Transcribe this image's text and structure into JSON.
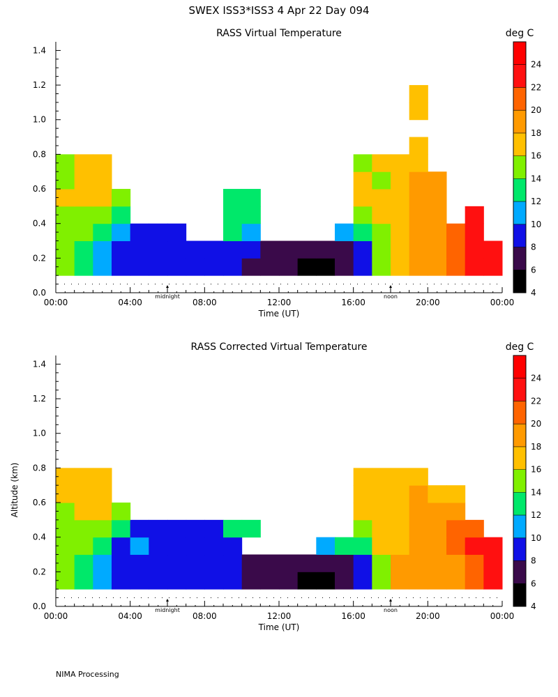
{
  "header": {
    "title": "SWEX ISS3*ISS3   4 Apr 22 Day 094"
  },
  "footer": {
    "text": "NIMA Processing"
  },
  "colorbar": {
    "unit": "deg C",
    "levels": [
      4,
      6,
      8,
      10,
      12,
      14,
      16,
      18,
      20,
      22,
      24,
      26
    ],
    "tick_labels": [
      "4",
      "6",
      "8",
      "10",
      "12",
      "14",
      "16",
      "18",
      "20",
      "22",
      "24"
    ],
    "colors": [
      "#000000",
      "#3a0a4a",
      "#1010e6",
      "#00aaff",
      "#00e86a",
      "#80f000",
      "#ffc000",
      "#ff9a00",
      "#ff6400",
      "#ff1010",
      "#ff0000"
    ]
  },
  "axes": {
    "xlabel": "Time (UT)",
    "ylabel": "Altitude (km)",
    "x_ticks": [
      "00:00",
      "04:00",
      "08:00",
      "12:00",
      "16:00",
      "20:00",
      "00:00"
    ],
    "y_ticks": [
      "0.0",
      "0.2",
      "0.4",
      "0.6",
      "0.8",
      "1.0",
      "1.2",
      "1.4"
    ],
    "marker_labels": {
      "midnight": "midnight",
      "noon": "noon"
    }
  },
  "chart_data": [
    {
      "type": "heatmap",
      "title": "RASS Virtual Temperature",
      "x_range_hours": [
        0,
        24
      ],
      "ylim_km": [
        0,
        1.45
      ],
      "x_hours": [
        0.5,
        1.5,
        2.5,
        3.5,
        4.5,
        5.5,
        6.5,
        7.5,
        8.5,
        9.5,
        10.5,
        11.5,
        12.5,
        13.5,
        14.5,
        15.5,
        16.5,
        17.5,
        18.5,
        19.5,
        20.5,
        21.5,
        22.5,
        23.5
      ],
      "y_km": [
        0.15,
        0.25,
        0.35,
        0.45,
        0.55,
        0.65,
        0.75,
        0.85,
        0.95,
        1.05,
        1.15
      ],
      "z_celsius": [
        [
          14,
          13,
          11,
          9,
          9,
          8.5,
          8.5,
          8.5,
          8,
          8,
          7.5,
          7,
          6.5,
          5.5,
          5,
          6,
          8,
          15,
          17,
          19,
          19,
          20,
          22,
          23
        ],
        [
          14,
          13,
          11,
          9,
          9,
          8.5,
          8.5,
          8.5,
          8,
          8,
          8,
          7.5,
          7,
          6.5,
          6.5,
          7,
          9,
          15,
          17,
          19,
          19,
          20,
          22,
          23
        ],
        [
          14,
          14,
          13,
          11,
          9,
          9,
          9,
          null,
          null,
          13,
          11,
          null,
          null,
          null,
          null,
          10,
          12,
          15,
          17,
          18,
          19,
          21,
          23,
          null
        ],
        [
          15,
          14,
          15,
          12,
          null,
          null,
          null,
          null,
          null,
          13,
          13,
          null,
          null,
          null,
          null,
          null,
          14,
          16,
          17,
          18,
          19,
          null,
          23,
          null
        ],
        [
          16,
          16,
          17,
          15,
          null,
          null,
          null,
          null,
          null,
          13,
          13,
          null,
          null,
          null,
          null,
          null,
          16,
          17,
          17,
          18,
          19,
          null,
          null,
          null
        ],
        [
          14,
          16,
          17,
          null,
          null,
          null,
          null,
          null,
          null,
          null,
          null,
          null,
          null,
          null,
          null,
          null,
          16,
          15,
          17,
          18,
          19,
          null,
          null,
          null
        ],
        [
          14,
          16,
          16,
          null,
          null,
          null,
          null,
          null,
          null,
          null,
          null,
          null,
          null,
          null,
          null,
          null,
          14,
          16,
          17,
          17,
          null,
          null,
          null,
          null
        ],
        [
          null,
          null,
          null,
          null,
          null,
          null,
          null,
          null,
          null,
          null,
          null,
          null,
          null,
          null,
          null,
          null,
          null,
          null,
          null,
          17,
          null,
          null,
          null,
          null
        ],
        [
          null,
          null,
          null,
          null,
          null,
          null,
          null,
          null,
          null,
          null,
          null,
          null,
          null,
          null,
          null,
          null,
          null,
          null,
          null,
          null,
          null,
          null,
          null,
          null
        ],
        [
          null,
          null,
          null,
          null,
          null,
          null,
          null,
          null,
          null,
          null,
          null,
          null,
          null,
          null,
          null,
          null,
          null,
          null,
          null,
          16,
          null,
          null,
          null,
          null
        ],
        [
          null,
          null,
          null,
          null,
          null,
          null,
          null,
          null,
          null,
          null,
          null,
          null,
          null,
          null,
          null,
          null,
          null,
          null,
          null,
          16,
          null,
          null,
          null,
          null
        ]
      ]
    },
    {
      "type": "heatmap",
      "title": "RASS Corrected Virtual Temperature",
      "x_range_hours": [
        0,
        24
      ],
      "ylim_km": [
        0,
        1.45
      ],
      "x_hours": [
        0.5,
        1.5,
        2.5,
        3.5,
        4.5,
        5.5,
        6.5,
        7.5,
        8.5,
        9.5,
        10.5,
        11.5,
        12.5,
        13.5,
        14.5,
        15.5,
        16.5,
        17.5,
        18.5,
        19.5,
        20.5,
        21.5,
        22.5,
        23.5
      ],
      "y_km": [
        0.15,
        0.25,
        0.35,
        0.45,
        0.55,
        0.65,
        0.75,
        0.85,
        0.95,
        1.05,
        1.15
      ],
      "z_celsius": [
        [
          14,
          13,
          11,
          9,
          9,
          8.5,
          8.5,
          8.5,
          8,
          8,
          7.5,
          7,
          6.5,
          5.5,
          5,
          6,
          8,
          14,
          18,
          19,
          19,
          19,
          21,
          22
        ],
        [
          14,
          13,
          11,
          9,
          9,
          8.5,
          8.5,
          8.5,
          8,
          8,
          7.5,
          7,
          7,
          6.5,
          6.5,
          7,
          9,
          14,
          18,
          19,
          19,
          19,
          21,
          22
        ],
        [
          14,
          14,
          13,
          9,
          11,
          9,
          9,
          9,
          9,
          8.5,
          null,
          null,
          null,
          null,
          11,
          12,
          13,
          16,
          17,
          18,
          19,
          20,
          22,
          22
        ],
        [
          15,
          14,
          15,
          12,
          9,
          9,
          9,
          9,
          9,
          13,
          13,
          null,
          null,
          null,
          null,
          null,
          15,
          17,
          17,
          18,
          19,
          20,
          21,
          null
        ],
        [
          15,
          16,
          17,
          15,
          null,
          null,
          null,
          null,
          null,
          null,
          null,
          null,
          null,
          null,
          null,
          null,
          16,
          17,
          17,
          18,
          19,
          19,
          null,
          null
        ],
        [
          16,
          16,
          17,
          null,
          null,
          null,
          null,
          null,
          null,
          null,
          null,
          null,
          null,
          null,
          null,
          null,
          16,
          17,
          17,
          18,
          17,
          17,
          null,
          null
        ],
        [
          16,
          16,
          16,
          null,
          null,
          null,
          null,
          null,
          null,
          null,
          null,
          null,
          null,
          null,
          null,
          null,
          16,
          17,
          16,
          17,
          null,
          null,
          null,
          null
        ],
        [
          null,
          null,
          null,
          null,
          null,
          null,
          null,
          null,
          null,
          null,
          null,
          null,
          null,
          null,
          null,
          null,
          null,
          null,
          null,
          null,
          null,
          null,
          null,
          null
        ],
        [
          null,
          null,
          null,
          null,
          null,
          null,
          null,
          null,
          null,
          null,
          null,
          null,
          null,
          null,
          null,
          null,
          null,
          null,
          null,
          null,
          null,
          null,
          null,
          null
        ],
        [
          null,
          null,
          null,
          null,
          null,
          null,
          null,
          null,
          null,
          null,
          null,
          null,
          null,
          null,
          null,
          null,
          null,
          null,
          null,
          null,
          null,
          null,
          null,
          null
        ],
        [
          null,
          null,
          null,
          null,
          null,
          null,
          null,
          null,
          null,
          null,
          null,
          null,
          null,
          null,
          null,
          null,
          null,
          null,
          null,
          null,
          null,
          null,
          null,
          null
        ]
      ]
    }
  ]
}
